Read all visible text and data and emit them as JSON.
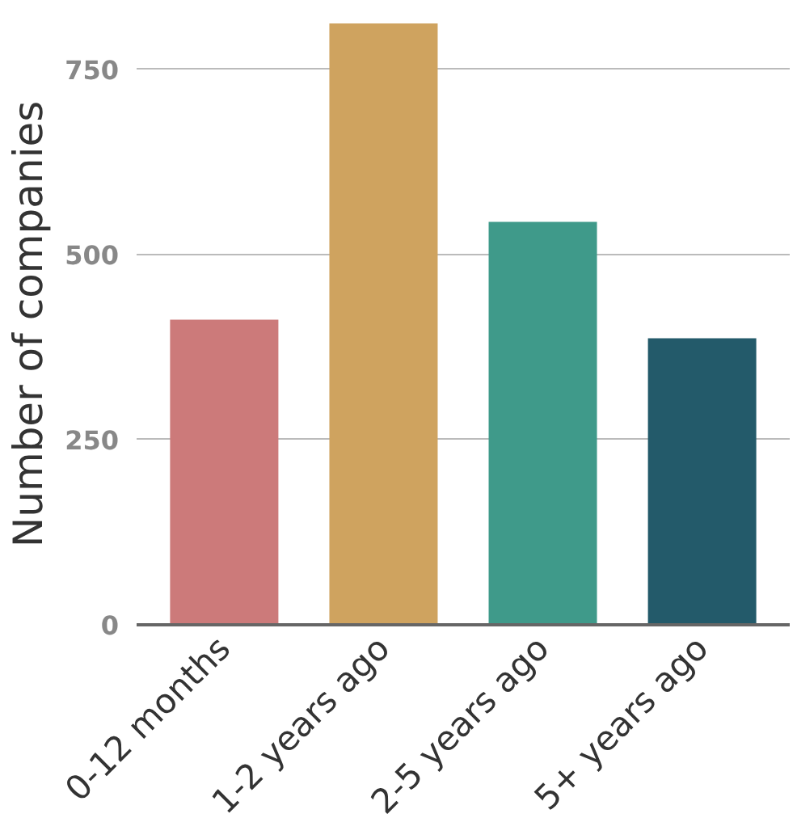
{
  "chart_data": {
    "type": "bar",
    "ylabel": "Number of companies",
    "categories": [
      "0-12 months",
      "1-2 years ago",
      "2-5 years ago",
      "5+ years ago"
    ],
    "values": [
      412,
      812,
      544,
      387
    ],
    "colors": [
      "#cc7a7a",
      "#cfa35f",
      "#3f9a8a",
      "#235a6a"
    ],
    "ylim": [
      0,
      812
    ],
    "yticks": [
      0,
      250,
      500,
      750
    ],
    "grid": "y"
  }
}
